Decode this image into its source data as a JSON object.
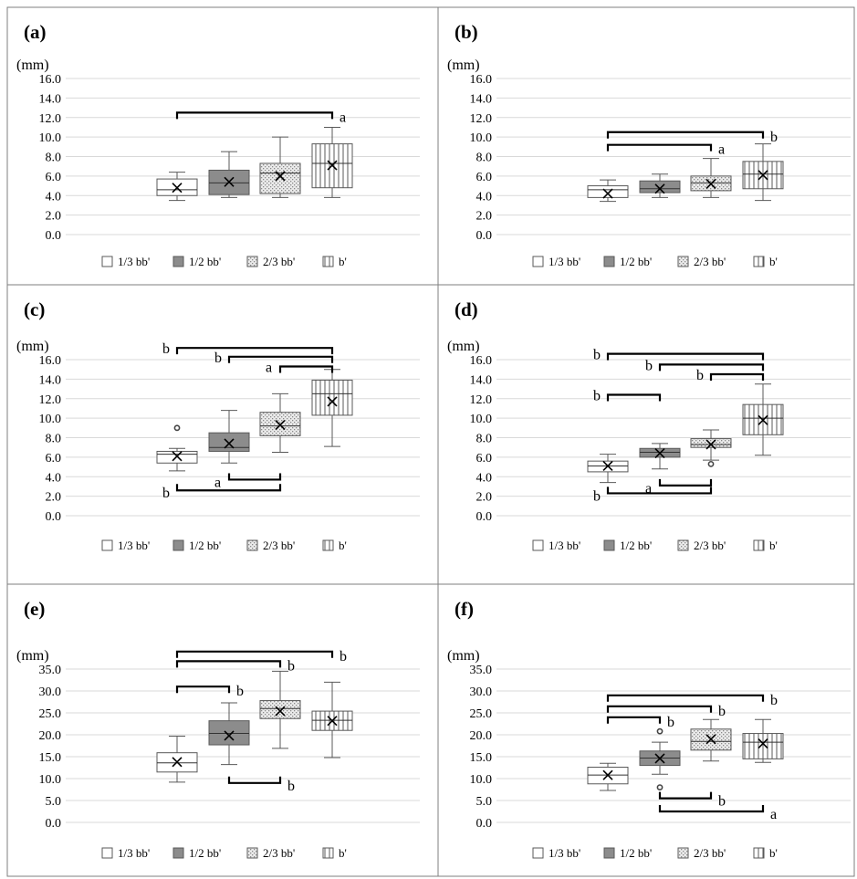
{
  "legend": [
    {
      "label": "1/3 bb'",
      "pattern": "white"
    },
    {
      "label": "1/2 bb'",
      "pattern": "darkgray"
    },
    {
      "label": "2/3 bb'",
      "pattern": "dotted"
    },
    {
      "label": "b'",
      "pattern": "vlines"
    }
  ],
  "colors": {
    "border": "#7f7f7f",
    "grid": "#d9d9d9",
    "box_stroke": "#595959",
    "dark_fill": "#8c8c8c",
    "bracket": "#000000"
  },
  "chart_data": [
    {
      "type": "box",
      "panel_label": "(a)",
      "unit_label": "(mm)",
      "ylim": [
        0,
        16
      ],
      "y_ticks": [
        "0.0",
        "2.0",
        "4.0",
        "6.0",
        "8.0",
        "10.0",
        "12.0",
        "14.0",
        "16.0"
      ],
      "series": [
        {
          "name": "1/3 bb'",
          "whisker_low": 3.5,
          "q1": 4.0,
          "median": 4.6,
          "q3": 5.7,
          "whisker_high": 6.4,
          "mean": 4.8,
          "outliers": []
        },
        {
          "name": "1/2 bb'",
          "whisker_low": 3.8,
          "q1": 4.1,
          "median": 5.3,
          "q3": 6.6,
          "whisker_high": 8.5,
          "mean": 5.4,
          "outliers": []
        },
        {
          "name": "2/3 bb'",
          "whisker_low": 3.8,
          "q1": 4.2,
          "median": 6.3,
          "q3": 7.3,
          "whisker_high": 10.0,
          "mean": 6.0,
          "outliers": []
        },
        {
          "name": "b'",
          "whisker_low": 3.8,
          "q1": 4.8,
          "median": 7.3,
          "q3": 9.3,
          "whisker_high": 11.0,
          "mean": 7.1,
          "outliers": []
        }
      ],
      "brackets": [
        {
          "from": 1,
          "to": 4,
          "y": 12.5,
          "side": "top",
          "label": "a",
          "label_pos": "right"
        }
      ]
    },
    {
      "type": "box",
      "panel_label": "(b)",
      "unit_label": "(mm)",
      "ylim": [
        0,
        16
      ],
      "y_ticks": [
        "0.0",
        "2.0",
        "4.0",
        "6.0",
        "8.0",
        "10.0",
        "12.0",
        "14.0",
        "16.0"
      ],
      "series": [
        {
          "name": "1/3 bb'",
          "whisker_low": 3.4,
          "q1": 3.8,
          "median": 4.6,
          "q3": 5.0,
          "whisker_high": 5.6,
          "mean": 4.2,
          "outliers": []
        },
        {
          "name": "1/2 bb'",
          "whisker_low": 3.8,
          "q1": 4.3,
          "median": 4.7,
          "q3": 5.5,
          "whisker_high": 6.2,
          "mean": 4.7,
          "outliers": []
        },
        {
          "name": "2/3 bb'",
          "whisker_low": 3.8,
          "q1": 4.5,
          "median": 5.3,
          "q3": 6.0,
          "whisker_high": 7.8,
          "mean": 5.2,
          "outliers": []
        },
        {
          "name": "b'",
          "whisker_low": 3.5,
          "q1": 4.7,
          "median": 6.2,
          "q3": 7.5,
          "whisker_high": 9.3,
          "mean": 6.1,
          "outliers": []
        }
      ],
      "brackets": [
        {
          "from": 1,
          "to": 4,
          "y": 10.5,
          "side": "top",
          "label": "b",
          "label_pos": "right"
        },
        {
          "from": 1,
          "to": 3,
          "y": 9.2,
          "side": "top",
          "label": "a",
          "label_pos": "right"
        }
      ]
    },
    {
      "type": "box",
      "panel_label": "(c)",
      "unit_label": "(mm)",
      "ylim": [
        0,
        16
      ],
      "y_ticks": [
        "0.0",
        "2.0",
        "4.0",
        "6.0",
        "8.0",
        "10.0",
        "12.0",
        "14.0",
        "16.0"
      ],
      "series": [
        {
          "name": "1/3 bb'",
          "whisker_low": 4.6,
          "q1": 5.4,
          "median": 6.3,
          "q3": 6.6,
          "whisker_high": 6.9,
          "mean": 6.1,
          "outliers": [
            9.0
          ]
        },
        {
          "name": "1/2 bb'",
          "whisker_low": 5.4,
          "q1": 6.6,
          "median": 7.0,
          "q3": 8.5,
          "whisker_high": 10.8,
          "mean": 7.4,
          "outliers": []
        },
        {
          "name": "2/3 bb'",
          "whisker_low": 6.5,
          "q1": 8.2,
          "median": 9.2,
          "q3": 10.6,
          "whisker_high": 12.5,
          "mean": 9.3,
          "outliers": []
        },
        {
          "name": "b'",
          "whisker_low": 7.1,
          "q1": 10.3,
          "median": 12.5,
          "q3": 13.9,
          "whisker_high": 15.0,
          "mean": 11.7,
          "outliers": []
        }
      ],
      "brackets": [
        {
          "from": 1,
          "to": 4,
          "y": 17.2,
          "side": "top",
          "label": "b",
          "label_pos": "left"
        },
        {
          "from": 2,
          "to": 4,
          "y": 16.3,
          "side": "top",
          "label": "b",
          "label_pos": "left"
        },
        {
          "from": 3,
          "to": 4,
          "y": 15.3,
          "side": "top",
          "label": "a",
          "label_pos": "left"
        },
        {
          "from": 2,
          "to": 3,
          "y": 3.7,
          "side": "bottom",
          "label": "a",
          "label_pos": "left"
        },
        {
          "from": 1,
          "to": 3,
          "y": 2.6,
          "side": "bottom",
          "label": "b",
          "label_pos": "left"
        }
      ]
    },
    {
      "type": "box",
      "panel_label": "(d)",
      "unit_label": "(mm)",
      "ylim": [
        0,
        16
      ],
      "y_ticks": [
        "0.0",
        "2.0",
        "4.0",
        "6.0",
        "8.0",
        "10.0",
        "12.0",
        "14.0",
        "16.0"
      ],
      "series": [
        {
          "name": "1/3 bb'",
          "whisker_low": 3.4,
          "q1": 4.5,
          "median": 5.1,
          "q3": 5.6,
          "whisker_high": 6.3,
          "mean": 5.1,
          "outliers": []
        },
        {
          "name": "1/2 bb'",
          "whisker_low": 4.8,
          "q1": 6.0,
          "median": 6.5,
          "q3": 6.9,
          "whisker_high": 7.4,
          "mean": 6.4,
          "outliers": []
        },
        {
          "name": "2/3 bb'",
          "whisker_low": 5.7,
          "q1": 7.0,
          "median": 7.3,
          "q3": 7.9,
          "whisker_high": 8.8,
          "mean": 7.3,
          "outliers": [
            5.3
          ]
        },
        {
          "name": "b'",
          "whisker_low": 6.2,
          "q1": 8.3,
          "median": 10.0,
          "q3": 11.4,
          "whisker_high": 13.5,
          "mean": 9.8,
          "outliers": []
        }
      ],
      "brackets": [
        {
          "from": 1,
          "to": 4,
          "y": 16.6,
          "side": "top",
          "label": "b",
          "label_pos": "left"
        },
        {
          "from": 2,
          "to": 4,
          "y": 15.5,
          "side": "top",
          "label": "b",
          "label_pos": "left"
        },
        {
          "from": 3,
          "to": 4,
          "y": 14.5,
          "side": "top",
          "label": "b",
          "label_pos": "left"
        },
        {
          "from": 1,
          "to": 2,
          "y": 12.4,
          "side": "top",
          "label": "b",
          "label_pos": "left"
        },
        {
          "from": 2,
          "to": 3,
          "y": 3.1,
          "side": "bottom",
          "label": "a",
          "label_pos": "left"
        },
        {
          "from": 1,
          "to": 3,
          "y": 2.3,
          "side": "bottom",
          "label": "b",
          "label_pos": "left"
        }
      ]
    },
    {
      "type": "box",
      "panel_label": "(e)",
      "unit_label": "(mm)",
      "ylim": [
        0,
        35
      ],
      "y_ticks": [
        "0.0",
        "5.0",
        "10.0",
        "15.0",
        "20.0",
        "25.0",
        "30.0",
        "35.0"
      ],
      "series": [
        {
          "name": "1/3 bb'",
          "whisker_low": 9.2,
          "q1": 11.5,
          "median": 13.6,
          "q3": 15.9,
          "whisker_high": 19.7,
          "mean": 13.8,
          "outliers": []
        },
        {
          "name": "1/2 bb'",
          "whisker_low": 13.2,
          "q1": 17.7,
          "median": 20.3,
          "q3": 23.2,
          "whisker_high": 27.3,
          "mean": 19.8,
          "outliers": []
        },
        {
          "name": "2/3 bb'",
          "whisker_low": 16.9,
          "q1": 23.7,
          "median": 26.0,
          "q3": 27.8,
          "whisker_high": 34.5,
          "mean": 25.4,
          "outliers": []
        },
        {
          "name": "b'",
          "whisker_low": 14.8,
          "q1": 21.0,
          "median": 23.3,
          "q3": 25.4,
          "whisker_high": 32.0,
          "mean": 23.2,
          "outliers": []
        }
      ],
      "brackets": [
        {
          "from": 1,
          "to": 4,
          "y": 39.0,
          "side": "top",
          "label": "b",
          "label_pos": "right"
        },
        {
          "from": 1,
          "to": 3,
          "y": 36.8,
          "side": "top",
          "label": "b",
          "label_pos": "right"
        },
        {
          "from": 1,
          "to": 2,
          "y": 31.0,
          "side": "top",
          "label": "b",
          "label_pos": "right"
        },
        {
          "from": 2,
          "to": 3,
          "y": 9.0,
          "side": "bottom",
          "label": "b",
          "label_pos": "right"
        }
      ]
    },
    {
      "type": "box",
      "panel_label": "(f)",
      "unit_label": "(mm)",
      "ylim": [
        0,
        35
      ],
      "y_ticks": [
        "0.0",
        "5.0",
        "10.0",
        "15.0",
        "20.0",
        "25.0",
        "30.0",
        "35.0"
      ],
      "series": [
        {
          "name": "1/3 bb'",
          "whisker_low": 7.3,
          "q1": 8.8,
          "median": 10.8,
          "q3": 12.6,
          "whisker_high": 13.5,
          "mean": 10.8,
          "outliers": []
        },
        {
          "name": "1/2 bb'",
          "whisker_low": 11.0,
          "q1": 13.0,
          "median": 14.7,
          "q3": 16.3,
          "whisker_high": 18.3,
          "mean": 14.6,
          "outliers": [
            20.8,
            8.0
          ]
        },
        {
          "name": "2/3 bb'",
          "whisker_low": 14.0,
          "q1": 16.5,
          "median": 18.5,
          "q3": 21.3,
          "whisker_high": 23.5,
          "mean": 19.0,
          "outliers": []
        },
        {
          "name": "b'",
          "whisker_low": 13.7,
          "q1": 14.5,
          "median": 18.3,
          "q3": 20.3,
          "whisker_high": 23.5,
          "mean": 18.0,
          "outliers": []
        }
      ],
      "brackets": [
        {
          "from": 1,
          "to": 4,
          "y": 29.0,
          "side": "top",
          "label": "b",
          "label_pos": "right"
        },
        {
          "from": 1,
          "to": 3,
          "y": 26.5,
          "side": "top",
          "label": "b",
          "label_pos": "right"
        },
        {
          "from": 1,
          "to": 2,
          "y": 24.0,
          "side": "top",
          "label": "b",
          "label_pos": "right"
        },
        {
          "from": 2,
          "to": 3,
          "y": 5.5,
          "side": "bottom",
          "label": "b",
          "label_pos": "right"
        },
        {
          "from": 2,
          "to": 4,
          "y": 2.5,
          "side": "bottom",
          "label": "a",
          "label_pos": "right"
        }
      ]
    }
  ]
}
